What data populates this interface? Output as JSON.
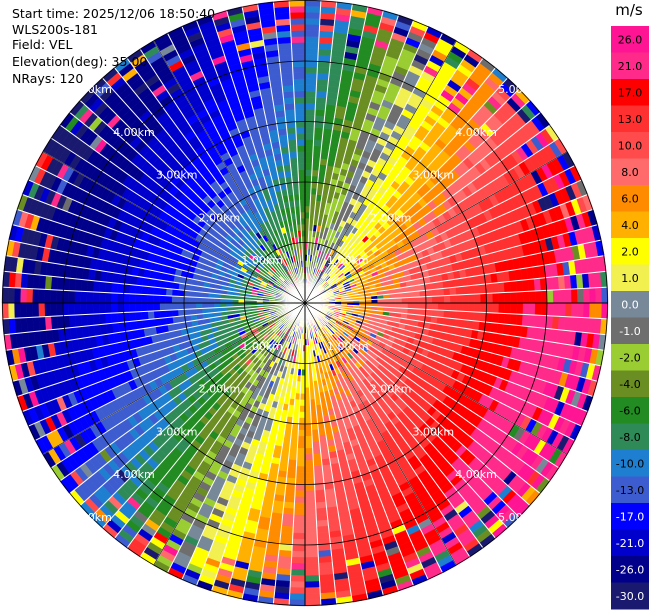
{
  "info": {
    "start_time": "Start time: 2025/12/06 18:50:40",
    "site": "WLS200s-181",
    "field": "Field: VEL",
    "elevation": "Elevation(deg): 35.00",
    "nrays": "NRays: 120"
  },
  "chart_data": {
    "type": "heatmap",
    "projection": "polar (PPI)",
    "field": "VEL",
    "n_rays": 120,
    "range_rings_km": [
      1,
      2,
      3,
      4,
      5
    ],
    "ring_labels": [
      "1.00km",
      "2.00km",
      "3.00km",
      "4.00km",
      "5.00km"
    ],
    "colorbar": {
      "unit": "m/s",
      "tick_labels": [
        "26.0",
        "21.0",
        "17.0",
        "13.0",
        "10.0",
        "8.0",
        "6.0",
        "4.0",
        "2.0",
        "1.0",
        "0.0",
        "-1.0",
        "-2.0",
        "-4.0",
        "-6.0",
        "-8.0",
        "-10.0",
        "-13.0",
        "-17.0",
        "-21.0",
        "-26.0",
        "-30.0"
      ],
      "colors": [
        "#ff1493",
        "#ff2a8a",
        "#ff0000",
        "#ff3030",
        "#ff4b4b",
        "#ff6a6a",
        "#ff8c00",
        "#ffb000",
        "#ffff00",
        "#f2f050",
        "#778899",
        "#6e6e6e",
        "#9acd32",
        "#6b8e23",
        "#228b22",
        "#2e8b57",
        "#1e7fd0",
        "#3d5ccf",
        "#0000ff",
        "#0000cd",
        "#00008b",
        "#191970"
      ]
    },
    "pattern": {
      "positive_velocity_direction": "east / south-east",
      "negative_velocity_direction": "west / north-west",
      "zero_line_direction": "north-east to south-west",
      "max_speed_ms": 26
    }
  }
}
